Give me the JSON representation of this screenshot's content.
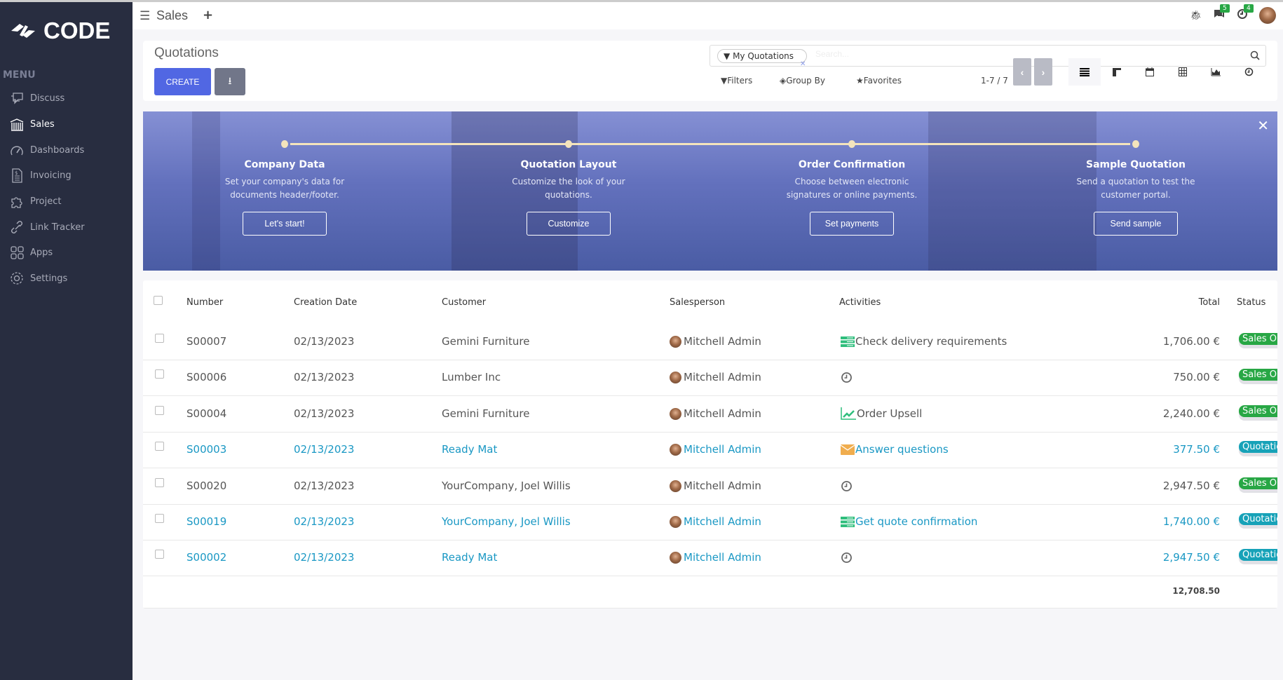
{
  "brand": {
    "name": "CODE"
  },
  "sidebar": {
    "menu_label": "MENU",
    "items": [
      {
        "label": "Discuss",
        "icon": "discuss-icon"
      },
      {
        "label": "Sales",
        "icon": "sales-icon",
        "active": true
      },
      {
        "label": "Dashboards",
        "icon": "dashboard-icon"
      },
      {
        "label": "Invoicing",
        "icon": "invoice-icon"
      },
      {
        "label": "Project",
        "icon": "puzzle-icon"
      },
      {
        "label": "Link Tracker",
        "icon": "link-icon"
      },
      {
        "label": "Apps",
        "icon": "apps-icon"
      },
      {
        "label": "Settings",
        "icon": "gear-icon"
      }
    ]
  },
  "topbar": {
    "app_title": "Sales",
    "messages_count": "5",
    "activities_count": "4"
  },
  "control": {
    "title": "Quotations",
    "create_label": "CREATE",
    "facet": "My Quotations",
    "search_placeholder": "Search...",
    "filters": "Filters",
    "group_by": "Group By",
    "favorites": "Favorites",
    "pager": "1-7 / 7",
    "views": [
      "list",
      "kanban",
      "calendar",
      "pivot",
      "graph",
      "activity"
    ],
    "active_view": "list"
  },
  "banner": {
    "steps": [
      {
        "title": "Company Data",
        "desc1": "Set your company's data for",
        "desc2": "documents header/footer.",
        "button": "Let's start!"
      },
      {
        "title": "Quotation Layout",
        "desc1": "Customize the look of your",
        "desc2": "quotations.",
        "button": "Customize"
      },
      {
        "title": "Order Confirmation",
        "desc1": "Choose between electronic",
        "desc2": "signatures or online payments.",
        "button": "Set payments"
      },
      {
        "title": "Sample Quotation",
        "desc1": "Send a quotation to test the",
        "desc2": "customer portal.",
        "button": "Send sample"
      }
    ]
  },
  "table": {
    "columns": [
      "Number",
      "Creation Date",
      "Customer",
      "Salesperson",
      "Activities",
      "Total",
      "Status"
    ],
    "rows": [
      {
        "number": "S00007",
        "date": "02/13/2023",
        "customer": "Gemini Furniture",
        "salesperson": "Mitchell Admin",
        "activity": "Check delivery requirements",
        "activity_icon": "todo-icon",
        "total": "1,706.00 €",
        "status": "Sales Order",
        "link": false
      },
      {
        "number": "S00006",
        "date": "02/13/2023",
        "customer": "Lumber Inc",
        "salesperson": "Mitchell Admin",
        "activity": "",
        "activity_icon": "clock-icon",
        "total": "750.00 €",
        "status": "Sales Order",
        "link": false
      },
      {
        "number": "S00004",
        "date": "02/13/2023",
        "customer": "Gemini Furniture",
        "salesperson": "Mitchell Admin",
        "activity": "Order Upsell",
        "activity_icon": "upsell-chart-icon",
        "total": "2,240.00 €",
        "status": "Sales Order",
        "link": false
      },
      {
        "number": "S00003",
        "date": "02/13/2023",
        "customer": "Ready Mat",
        "salesperson": "Mitchell Admin",
        "activity": "Answer questions",
        "activity_icon": "email-icon",
        "total": "377.50 €",
        "status": "Quotation",
        "link": true
      },
      {
        "number": "S00020",
        "date": "02/13/2023",
        "customer": "YourCompany, Joel Willis",
        "salesperson": "Mitchell Admin",
        "activity": "",
        "activity_icon": "clock-icon",
        "total": "2,947.50 €",
        "status": "Sales Order",
        "link": false
      },
      {
        "number": "S00019",
        "date": "02/13/2023",
        "customer": "YourCompany, Joel Willis",
        "salesperson": "Mitchell Admin",
        "activity": "Get quote confirmation",
        "activity_icon": "todo-icon",
        "total": "1,740.00 €",
        "status": "Quotation",
        "link": true
      },
      {
        "number": "S00002",
        "date": "02/13/2023",
        "customer": "Ready Mat",
        "salesperson": "Mitchell Admin",
        "activity": "",
        "activity_icon": "clock-icon",
        "total": "2,947.50 €",
        "status": "Quotation",
        "link": true
      }
    ],
    "grand_total": "12,708.50"
  },
  "colors": {
    "sidebar": "#282d40",
    "primary": "#5167e3",
    "link": "#1a98c4",
    "sales_order": "#28a745",
    "quotation": "#17a2b8"
  }
}
